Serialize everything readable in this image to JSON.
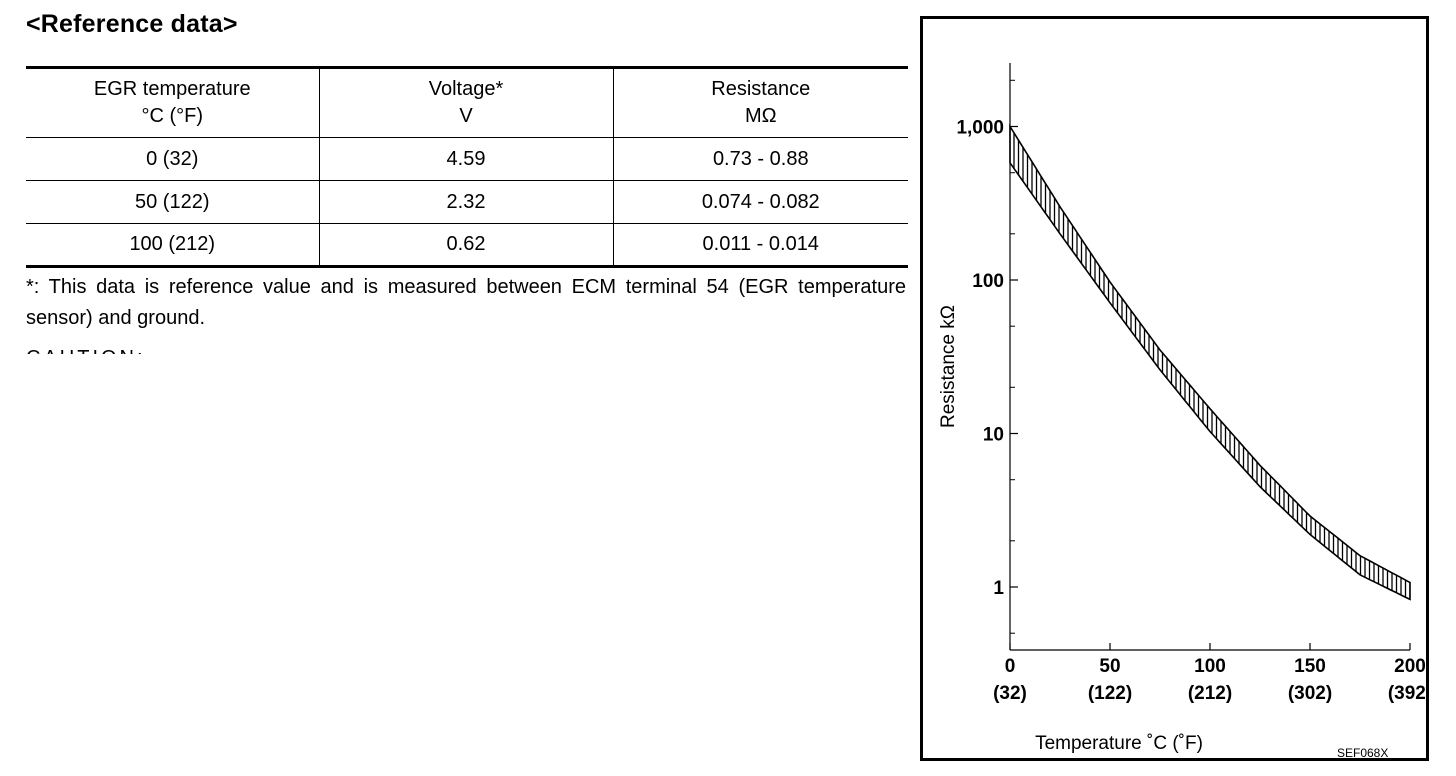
{
  "heading": "<Reference data>",
  "table": {
    "headers": [
      {
        "line1": "EGR temperature",
        "line2": "°C (°F)"
      },
      {
        "line1": "Voltage*",
        "line2": "V"
      },
      {
        "line1": "Resistance",
        "line2": "MΩ"
      }
    ],
    "rows": [
      [
        "0 (32)",
        "4.59",
        "0.73 - 0.88"
      ],
      [
        "50 (122)",
        "2.32",
        "0.074 - 0.082"
      ],
      [
        "100 (212)",
        "0.62",
        "0.011 - 0.014"
      ]
    ]
  },
  "footnote": "*: This data is reference value and is measured between ECM terminal 54 (EGR temperature sensor) and ground.",
  "clipped_text": "CAUTION:",
  "chart_data": {
    "type": "area",
    "title": "",
    "xlabel": "Temperature ˚C  (˚F)",
    "ylabel": "Resistance kΩ",
    "xlim": [
      0,
      200
    ],
    "ylim": [
      0.43,
      2500
    ],
    "y_scale": "log",
    "grid": false,
    "legend": "none",
    "x_ticks": [
      {
        "value": 0,
        "label": "0",
        "sublabel": "(32)"
      },
      {
        "value": 50,
        "label": "50",
        "sublabel": "(122)"
      },
      {
        "value": 100,
        "label": "100",
        "sublabel": "(212)"
      },
      {
        "value": 150,
        "label": "150",
        "sublabel": "(302)"
      },
      {
        "value": 200,
        "label": "200",
        "sublabel": "(392)"
      }
    ],
    "y_ticks": [
      {
        "value": 1000,
        "label": "1,000"
      },
      {
        "value": 100,
        "label": "100"
      },
      {
        "value": 10,
        "label": "10"
      },
      {
        "value": 1,
        "label": "1"
      }
    ],
    "series": [
      {
        "x": [
          0,
          25,
          50,
          75,
          100,
          125,
          150,
          175,
          200
        ],
        "upper": [
          1000,
          300,
          97,
          35,
          14.5,
          6.2,
          2.9,
          1.6,
          1.07
        ],
        "lower": [
          580,
          200,
          71,
          26,
          10.3,
          4.5,
          2.2,
          1.2,
          0.83
        ]
      }
    ],
    "code": "SEF068X",
    "color": "#000000"
  }
}
